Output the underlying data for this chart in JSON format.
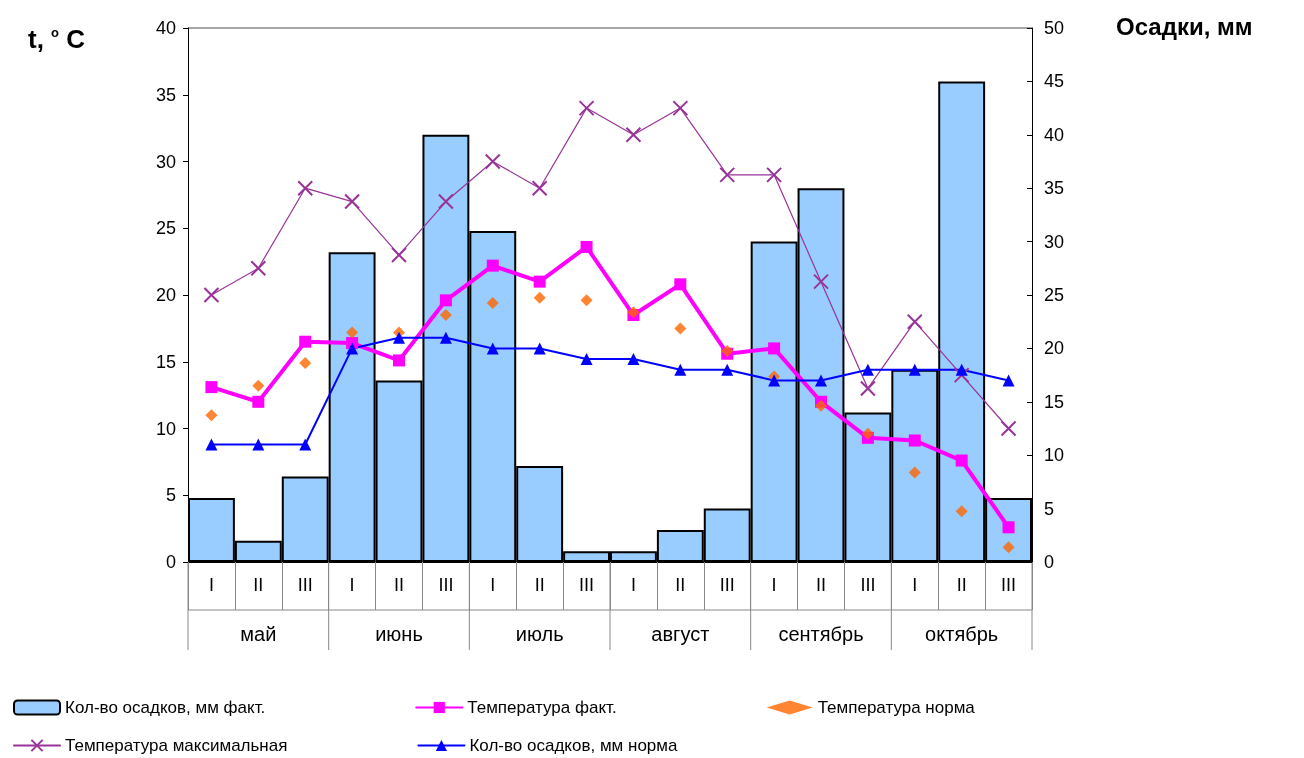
{
  "chart_data": {
    "type": "bar",
    "categories": [
      "I",
      "II",
      "III",
      "I",
      "II",
      "III",
      "I",
      "II",
      "III",
      "I",
      "II",
      "III",
      "I",
      "II",
      "III",
      "I",
      "II",
      "III"
    ],
    "annotations": [
      "май",
      "июнь",
      "июль",
      "август",
      "сентябрь",
      "октябрь"
    ],
    "ylabel": "t, $^{o}$ C",
    "y2label": "Осадки, мм",
    "ylim": [
      0,
      40
    ],
    "yticks": [
      0,
      5,
      10,
      15,
      20,
      25,
      30,
      35,
      40
    ],
    "y2lim": [
      0,
      50
    ],
    "y2ticks": [
      0,
      5,
      10,
      15,
      20,
      25,
      30,
      35,
      40,
      45,
      50
    ],
    "grid": false,
    "legend": "bottom",
    "series": [
      {
        "name": "Кол-во осадков, мм факт.",
        "axis": "y2",
        "color": "#99ccff",
        "values": [
          6,
          2,
          8,
          29,
          17,
          40,
          31,
          9,
          1,
          1,
          3,
          5,
          30,
          35,
          14,
          18,
          45,
          6
        ]
      },
      {
        "name": "Температура факт.",
        "type": "line",
        "marker": "square",
        "color": "#ff00ff",
        "values": [
          13.1,
          12,
          16.5,
          16.4,
          15.1,
          19.6,
          22.2,
          21,
          23.6,
          18.5,
          20.8,
          15.6,
          16,
          12,
          9.3,
          9.1,
          7.6,
          2.6
        ]
      },
      {
        "name": "Температура норма",
        "type": "scatter",
        "marker": "diamond",
        "color": "#ff6600",
        "values": [
          11,
          13.2,
          14.9,
          17.2,
          17.2,
          18.5,
          19.4,
          19.8,
          19.6,
          18.7,
          17.5,
          15.8,
          13.9,
          11.7,
          9.6,
          6.7,
          3.8,
          1.1
        ]
      },
      {
        "name": "Температура максимальная",
        "type": "line",
        "marker": "cross",
        "color": "#993399",
        "values": [
          20,
          22,
          28,
          27,
          23,
          27,
          30,
          28,
          34,
          32,
          34,
          29,
          29,
          21,
          13,
          18,
          14,
          10
        ]
      },
      {
        "name": "Кол-во осадков, мм норма",
        "type": "line",
        "marker": "triangle",
        "axis": "y2",
        "color": "#0000ff",
        "values": [
          11,
          11,
          11,
          20,
          21,
          21,
          20,
          20,
          19,
          19,
          18,
          18,
          17,
          17,
          18,
          18,
          18,
          17
        ]
      }
    ]
  }
}
